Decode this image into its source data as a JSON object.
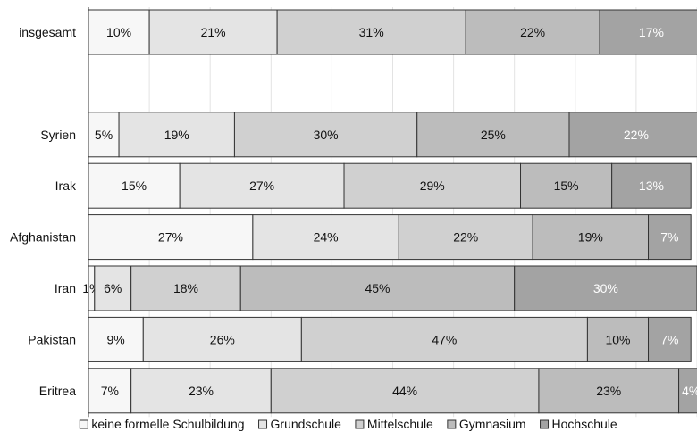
{
  "chart_data": {
    "type": "bar",
    "orientation": "horizontal",
    "stacked": true,
    "percent_stacked": true,
    "categories": [
      "insgesamt",
      "",
      "Syrien",
      "Irak",
      "Afghanistan",
      "Iran",
      "Pakistan",
      "Eritrea"
    ],
    "series": [
      {
        "name": "keine formelle Schulbildung",
        "color": "#f7f7f7",
        "label_color": "#111111",
        "values": [
          10,
          null,
          5,
          15,
          27,
          1,
          9,
          7
        ],
        "labels": [
          "10%",
          "",
          "5%",
          "15%",
          "27%",
          "1%",
          "9%",
          "7%"
        ]
      },
      {
        "name": "Grundschule",
        "color": "#e4e4e4",
        "label_color": "#111111",
        "values": [
          21,
          null,
          19,
          27,
          24,
          6,
          26,
          23
        ],
        "labels": [
          "21%",
          "",
          "19%",
          "27%",
          "24%",
          "6%",
          "26%",
          "23%"
        ]
      },
      {
        "name": "Mittelschule",
        "color": "#d0d0d0",
        "label_color": "#111111",
        "values": [
          31,
          null,
          30,
          29,
          22,
          18,
          47,
          44
        ],
        "labels": [
          "31%",
          "",
          "30%",
          "29%",
          "22%",
          "18%",
          "47%",
          "44%"
        ]
      },
      {
        "name": "Gymnasium",
        "color": "#bcbcbc",
        "label_color": "#111111",
        "values": [
          22,
          null,
          25,
          15,
          19,
          45,
          10,
          23
        ],
        "labels": [
          "22%",
          "",
          "25%",
          "15%",
          "19%",
          "45%",
          "10%",
          "23%"
        ]
      },
      {
        "name": "Hochschule",
        "color": "#a3a3a3",
        "label_color": "#ffffff",
        "values": [
          17,
          null,
          22,
          13,
          7,
          30,
          7,
          4
        ],
        "labels": [
          "17%",
          "",
          "22%",
          "13%",
          "7%",
          "30%",
          "7%",
          "4%"
        ]
      }
    ],
    "xlim": [
      0,
      100
    ],
    "legend_position": "bottom",
    "grid": true
  }
}
